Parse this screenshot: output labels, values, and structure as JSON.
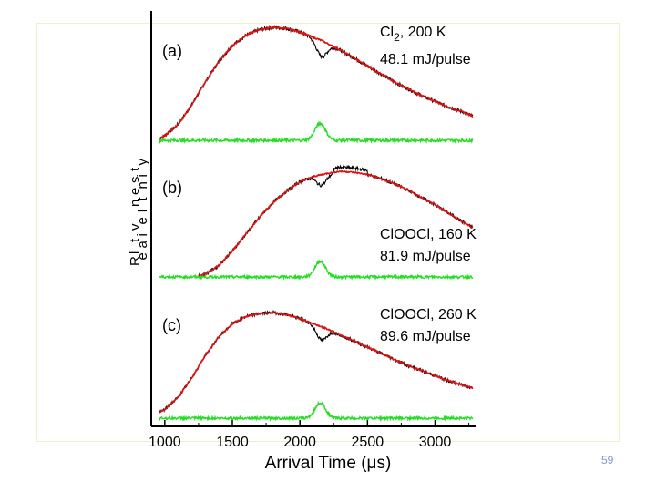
{
  "chart_data": {
    "type": "line",
    "xlabel": "Arrival Time (μs)",
    "ylabel_letters": [
      "R",
      "e",
      "l",
      "a",
      "t",
      "i",
      "v",
      "e",
      " ",
      "I",
      "n",
      "t",
      "e",
      "n",
      "s",
      "i",
      "t",
      "y"
    ],
    "xlim": [
      900,
      3300
    ],
    "xticks": [
      1000,
      1500,
      2000,
      2500,
      3000
    ],
    "panels": [
      {
        "label": "(a)",
        "annotation_species": "Cl",
        "annotation_sub": "2",
        "annotation_temp": ", 200 K",
        "annotation_energy": "48.1 mJ/pulse",
        "dip_depth": 0.14,
        "series": [
          {
            "name": "data",
            "color": "#000000"
          },
          {
            "name": "fit",
            "color": "#e01010"
          },
          {
            "name": "difference",
            "color": "#22dd22"
          }
        ],
        "fit_x": [
          960,
          1000,
          1100,
          1200,
          1300,
          1400,
          1500,
          1600,
          1700,
          1800,
          1900,
          2000,
          2100,
          2150,
          2200,
          2300,
          2400,
          2500,
          2600,
          2700,
          2800,
          2900,
          3000,
          3100,
          3200,
          3280
        ],
        "fit_y": [
          0.02,
          0.05,
          0.15,
          0.32,
          0.52,
          0.7,
          0.84,
          0.93,
          0.98,
          1.0,
          0.99,
          0.96,
          0.91,
          0.89,
          0.86,
          0.8,
          0.73,
          0.66,
          0.59,
          0.52,
          0.46,
          0.4,
          0.35,
          0.3,
          0.26,
          0.22
        ]
      },
      {
        "label": "(b)",
        "annotation_species": "ClOOCl, 160 K",
        "annotation_sub": "",
        "annotation_temp": "",
        "annotation_energy": "81.9 mJ/pulse",
        "dip_depth": 0.1,
        "series": [
          {
            "name": "data",
            "color": "#000000"
          },
          {
            "name": "fit",
            "color": "#e01010"
          },
          {
            "name": "difference",
            "color": "#22dd22"
          }
        ],
        "fit_x": [
          1250,
          1300,
          1400,
          1500,
          1600,
          1700,
          1800,
          1900,
          2000,
          2100,
          2200,
          2300,
          2400,
          2500,
          2600,
          2700,
          2800,
          2900,
          3000,
          3100,
          3200,
          3280
        ],
        "fit_y": [
          0.0,
          0.02,
          0.1,
          0.24,
          0.4,
          0.56,
          0.7,
          0.81,
          0.9,
          0.95,
          0.98,
          1.0,
          0.99,
          0.97,
          0.93,
          0.88,
          0.82,
          0.75,
          0.68,
          0.6,
          0.52,
          0.46
        ]
      },
      {
        "label": "(c)",
        "annotation_species": "ClOOCl, 260 K",
        "annotation_sub": "",
        "annotation_temp": "",
        "annotation_energy": "89.6 mJ/pulse",
        "dip_depth": 0.13,
        "series": [
          {
            "name": "data",
            "color": "#000000"
          },
          {
            "name": "fit",
            "color": "#e01010"
          },
          {
            "name": "difference",
            "color": "#22dd22"
          }
        ],
        "fit_x": [
          960,
          1000,
          1100,
          1200,
          1300,
          1400,
          1500,
          1600,
          1700,
          1800,
          1900,
          2000,
          2100,
          2200,
          2300,
          2400,
          2500,
          2600,
          2700,
          2800,
          2900,
          3000,
          3100,
          3200,
          3280
        ],
        "fit_y": [
          0.02,
          0.05,
          0.17,
          0.36,
          0.58,
          0.76,
          0.89,
          0.96,
          0.99,
          1.0,
          0.98,
          0.94,
          0.89,
          0.84,
          0.78,
          0.72,
          0.66,
          0.6,
          0.54,
          0.48,
          0.43,
          0.38,
          0.33,
          0.29,
          0.26
        ]
      }
    ]
  },
  "slide_number": "59"
}
